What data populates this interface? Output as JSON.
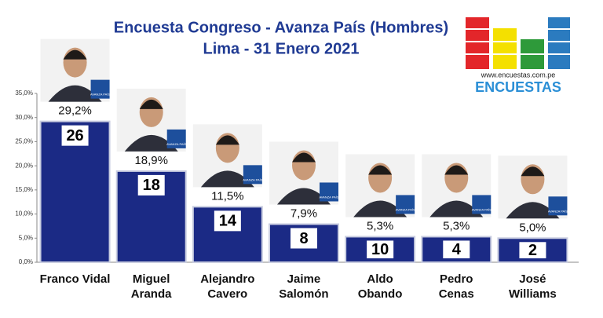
{
  "chart_data": {
    "type": "bar",
    "title": "Encuesta Congreso - Avanza País (Hombres)",
    "subtitle": "Lima - 31 Enero 2021",
    "logo_url": "www.encuestas.com.pe",
    "logo_name": "ENCUESTAS",
    "party_logo_text": "AVANZA PAÍS",
    "categories": [
      "Franco Vidal",
      "Miguel\nAranda",
      "Alejandro\nCavero",
      "Jaime\nSalomón",
      "Aldo\nObando",
      "Pedro\nCenas",
      "José\nWilliams"
    ],
    "values": [
      29.2,
      18.9,
      11.5,
      7.9,
      5.3,
      5.3,
      5.0
    ],
    "value_labels": [
      "29,2%",
      "18,9%",
      "11,5%",
      "7,9%",
      "5,3%",
      "5,3%",
      "5,0%"
    ],
    "candidate_numbers": [
      "26",
      "18",
      "14",
      "8",
      "10",
      "4",
      "2"
    ],
    "color": "#1b2a85",
    "ylim": [
      0,
      35
    ],
    "yticks": [
      {
        "value": 0,
        "label": "0,0%"
      },
      {
        "value": 5,
        "label": "5,0%"
      },
      {
        "value": 10,
        "label": "10,0%"
      },
      {
        "value": 15,
        "label": "15,0%"
      },
      {
        "value": 20,
        "label": "20,0%"
      },
      {
        "value": 25,
        "label": "25,0%"
      },
      {
        "value": 30,
        "label": "30,0%"
      },
      {
        "value": 35,
        "label": "35,0%"
      }
    ]
  }
}
